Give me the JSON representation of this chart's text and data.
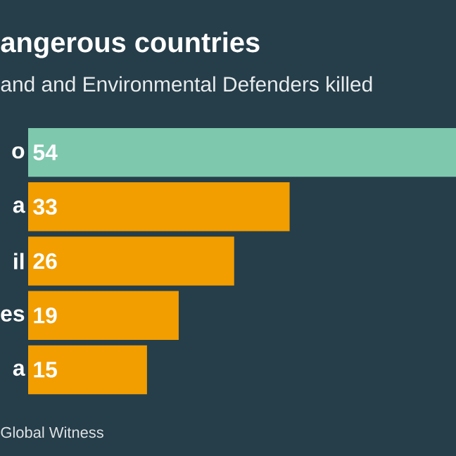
{
  "chart_data": {
    "type": "bar",
    "orientation": "horizontal",
    "title": "angerous countries",
    "subtitle": "and and Environmental Defenders killed",
    "categories": [
      "o",
      "a",
      "il",
      "es",
      "a"
    ],
    "values": [
      54,
      33,
      26,
      19,
      15
    ],
    "colors": [
      "#7ec8ae",
      "#f29d00",
      "#f29d00",
      "#f29d00",
      "#f29d00"
    ],
    "data_labels": true,
    "annotations": [
      "Global Witness"
    ]
  }
}
